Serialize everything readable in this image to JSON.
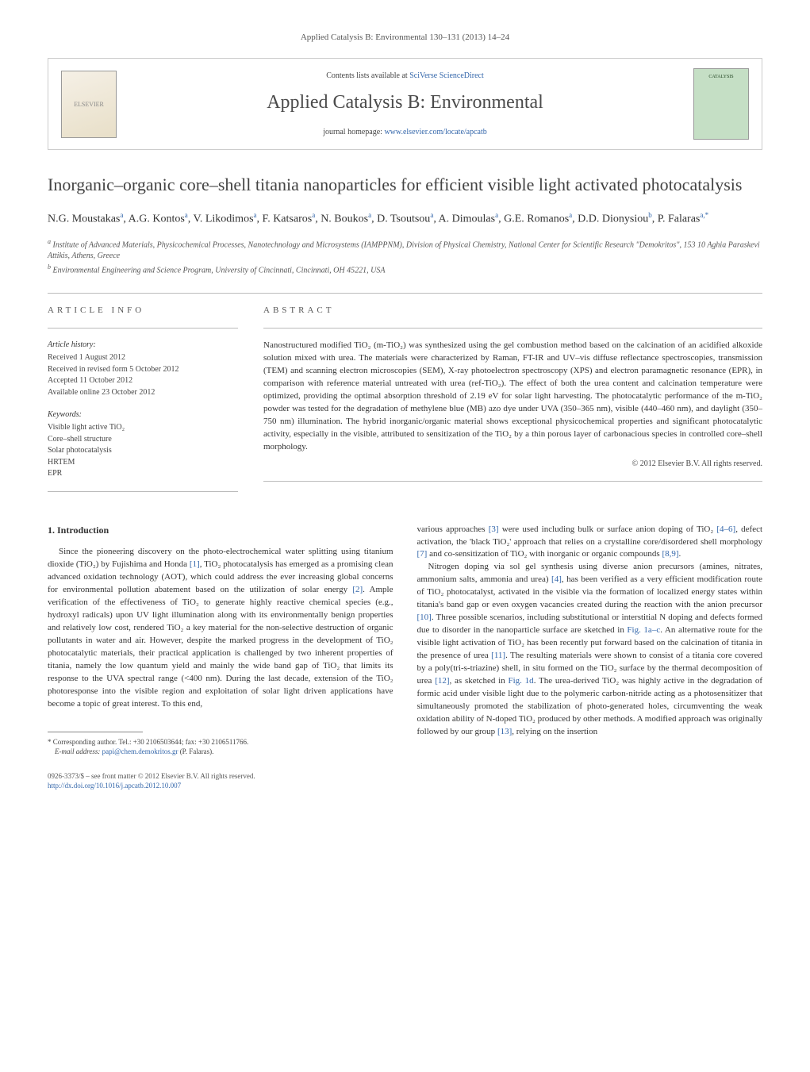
{
  "journal_ref": "Applied Catalysis B: Environmental 130–131 (2013) 14–24",
  "header": {
    "elsevier_label": "ELSEVIER",
    "contents_prefix": "Contents lists available at ",
    "contents_link": "SciVerse ScienceDirect",
    "journal_name": "Applied Catalysis B: Environmental",
    "homepage_prefix": "journal homepage: ",
    "homepage_link": "www.elsevier.com/locate/apcatb",
    "cover_label": "CATALYSIS"
  },
  "title": "Inorganic–organic core–shell titania nanoparticles for efficient visible light activated photocatalysis",
  "authors_line1": "N.G. Moustakas",
  "authors_sup1": "a",
  "authors_line2": ", A.G. Kontos",
  "authors_sup2": "a",
  "authors_line3": ", V. Likodimos",
  "authors_sup3": "a",
  "authors_line4": ", F. Katsaros",
  "authors_sup4": "a",
  "authors_line5": ", N. Boukos",
  "authors_sup5": "a",
  "authors_line6": ", D. Tsoutsou",
  "authors_sup6": "a",
  "authors_line7": ", A. Dimoulas",
  "authors_sup7": "a",
  "authors_line8": ", G.E. Romanos",
  "authors_sup8": "a",
  "authors_line9": ", D.D. Dionysiou",
  "authors_sup9": "b",
  "authors_line10": ", P. Falaras",
  "authors_sup10": "a,*",
  "affil_a_sup": "a",
  "affil_a": " Institute of Advanced Materials, Physicochemical Processes, Nanotechnology and Microsystems (IAMPPNM), Division of Physical Chemistry, National Center for Scientific Research \"Demokritos\", 153 10 Aghia Paraskevi Attikis, Athens, Greece",
  "affil_b_sup": "b",
  "affil_b": " Environmental Engineering and Science Program, University of Cincinnati, Cincinnati, OH 45221, USA",
  "info_label": "ARTICLE INFO",
  "history_header": "Article history:",
  "history": {
    "received": "Received 1 August 2012",
    "revised": "Received in revised form 5 October 2012",
    "accepted": "Accepted 11 October 2012",
    "online": "Available online 23 October 2012"
  },
  "keywords_header": "Keywords:",
  "keywords": {
    "k1": "Visible light active TiO₂",
    "k2": "Core–shell structure",
    "k3": "Solar photocatalysis",
    "k4": "HRTEM",
    "k5": "EPR"
  },
  "abstract_label": "ABSTRACT",
  "abstract_text": "Nanostructured modified TiO₂ (m-TiO₂) was synthesized using the gel combustion method based on the calcination of an acidified alkoxide solution mixed with urea. The materials were characterized by Raman, FT-IR and UV–vis diffuse reflectance spectroscopies, transmission (TEM) and scanning electron microscopies (SEM), X-ray photoelectron spectroscopy (XPS) and electron paramagnetic resonance (EPR), in comparison with reference material untreated with urea (ref-TiO₂). The effect of both the urea content and calcination temperature were optimized, providing the optimal absorption threshold of 2.19 eV for solar light harvesting. The photocatalytic performance of the m-TiO₂ powder was tested for the degradation of methylene blue (MB) azo dye under UVA (350–365 nm), visible (440–460 nm), and daylight (350–750 nm) illumination. The hybrid inorganic/organic material shows exceptional physicochemical properties and significant photocatalytic activity, especially in the visible, attributed to sensitization of the TiO₂ by a thin porous layer of carbonacious species in controlled core–shell morphology.",
  "copyright": "© 2012 Elsevier B.V. All rights reserved.",
  "section1_heading": "1. Introduction",
  "col1_p1a": "Since the pioneering discovery on the photo-electrochemical water splitting using titanium dioxide (TiO₂) by Fujishima and Honda ",
  "col1_ref1": "[1]",
  "col1_p1b": ", TiO₂ photocatalysis has emerged as a promising clean advanced oxidation technology (AOT), which could address the ever increasing global concerns for environmental pollution abatement based on the utilization of solar energy ",
  "col1_ref2": "[2]",
  "col1_p1c": ". Ample verification of the effectiveness of TiO₂ to generate highly reactive chemical species (e.g., hydroxyl radicals) upon UV light illumination along with its environmentally benign properties and relatively low cost, rendered TiO₂ a key material for the non-selective destruction of organic pollutants in water and air. However, despite the marked progress in the development of TiO₂ photocatalytic materials, their practical application is challenged by two inherent properties of titania, namely the low quantum yield and mainly the wide band gap of TiO₂ that limits its response to the UVA spectral range (<400 nm). During the last decade, extension of the TiO₂ photoresponse into the visible region and exploitation of solar light driven applications have become a topic of great interest. To this end,",
  "col2_p1a": "various approaches ",
  "col2_ref3": "[3]",
  "col2_p1b": " were used including bulk or surface anion doping of TiO₂ ",
  "col2_ref46": "[4–6]",
  "col2_p1c": ", defect activation, the 'black TiO₂' approach that relies on a crystalline core/disordered shell morphology ",
  "col2_ref7": "[7]",
  "col2_p1d": " and co-sensitization of TiO₂ with inorganic or organic compounds ",
  "col2_ref89": "[8,9]",
  "col2_p1e": ".",
  "col2_p2a": "Nitrogen doping via sol gel synthesis using diverse anion precursors (amines, nitrates, ammonium salts, ammonia and urea) ",
  "col2_ref4": "[4]",
  "col2_p2b": ", has been verified as a very efficient modification route of TiO₂ photocatalyst, activated in the visible via the formation of localized energy states within titania's band gap or even oxygen vacancies created during the reaction with the anion precursor ",
  "col2_ref10": "[10]",
  "col2_p2c": ". Three possible scenarios, including substitutional or interstitial N doping and defects formed due to disorder in the nanoparticle surface are sketched in ",
  "col2_fig1ac": "Fig. 1a–c",
  "col2_p2d": ". An alternative route for the visible light activation of TiO₂ has been recently put forward based on the calcination of titania in the presence of urea ",
  "col2_ref11": "[11]",
  "col2_p2e": ". The resulting materials were shown to consist of a titania core covered by a poly(tri-s-triazine) shell, in situ formed on the TiO₂ surface by the thermal decomposition of urea ",
  "col2_ref12": "[12]",
  "col2_p2f": ", as sketched in ",
  "col2_fig1d": "Fig. 1d",
  "col2_p2g": ". The urea-derived TiO₂ was highly active in the degradation of formic acid under visible light due to the polymeric carbon-nitride acting as a photosensitizer that simultaneously promoted the stabilization of photo-generated holes, circumventing the weak oxidation ability of N-doped TiO₂ produced by other methods. A modified approach was originally followed by our group ",
  "col2_ref13": "[13]",
  "col2_p2h": ", relying on the insertion",
  "corr_star": "*",
  "corr_text": " Corresponding author. Tel.: +30 2106503644; fax: +30 2106511766.",
  "corr_email_label": "E-mail address: ",
  "corr_email": "papi@chem.demokritos.gr",
  "corr_name": " (P. Falaras).",
  "front_matter": "0926-3373/$ – see front matter © 2012 Elsevier B.V. All rights reserved.",
  "doi": "http://dx.doi.org/10.1016/j.apcatb.2012.10.007"
}
